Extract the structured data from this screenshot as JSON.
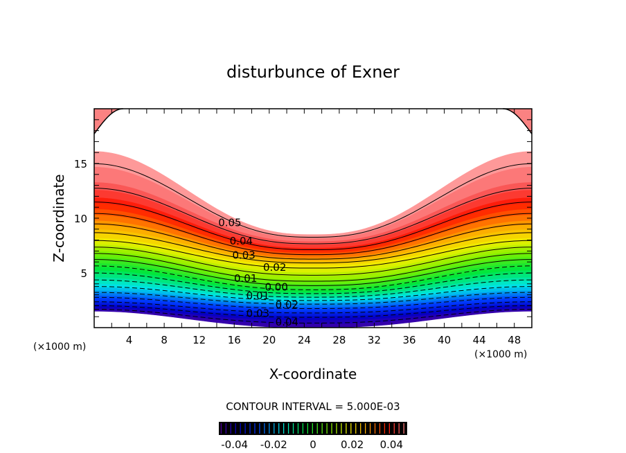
{
  "chart_data": {
    "type": "contour",
    "title": "disturbunce of Exner",
    "xlabel": "X-coordinate",
    "ylabel": "Z-coordinate",
    "x_unit_left": "(×1000 m)",
    "x_unit_right": "(×1000 m)",
    "xlim": [
      0,
      50
    ],
    "ylim": [
      0,
      20
    ],
    "xticks": [
      4,
      8,
      12,
      16,
      20,
      24,
      28,
      32,
      36,
      40,
      44,
      48
    ],
    "xtick_labels": [
      "4",
      "8",
      "12",
      "16",
      "20",
      "24",
      "28",
      "32",
      "36",
      "40",
      "44",
      "48"
    ],
    "yticks": [
      5,
      10,
      15
    ],
    "ytick_labels": [
      "5",
      "10",
      "15"
    ],
    "contour_interval_text": "CONTOUR INTERVAL = 5.000E-03",
    "contour_interval": 0.005,
    "level_range": [
      -0.045,
      0.05
    ],
    "level_heights": {
      "levels": [
        -0.045,
        -0.04,
        -0.03,
        -0.02,
        -0.01,
        0.0,
        0.01,
        0.02,
        0.03,
        0.04,
        0.045,
        0.05
      ],
      "z_at_edges": [
        1.5,
        1.8,
        2.5,
        3.4,
        4.6,
        5.9,
        7.0,
        8.2,
        9.8,
        11.9,
        13.3,
        16.1
      ],
      "z_at_center": [
        0.0,
        0.7,
        1.5,
        2.3,
        2.9,
        3.6,
        4.4,
        5.7,
        6.4,
        7.3,
        7.9,
        8.5
      ]
    },
    "top_corner_boundary": {
      "z_at_edge": 17.7,
      "x_reach": 3.3
    },
    "contour_labels": [
      {
        "text": "0.05",
        "x": 15.5,
        "z": 9.6
      },
      {
        "text": "0.04",
        "x": 16.8,
        "z": 7.9
      },
      {
        "text": "0.03",
        "x": 17.1,
        "z": 6.6
      },
      {
        "text": "0.02",
        "x": 17.3,
        "z": 5.5
      },
      {
        "text": "0.01",
        "x": 17.3,
        "z": 4.5
      },
      {
        "text": "0.00",
        "x": 17.5,
        "z": 3.7
      },
      {
        "text": "0.01",
        "x": 18.7,
        "z": 2.9
      },
      {
        "text": "0.02",
        "x": 18.7,
        "z": 2.1
      },
      {
        "text": "0.03",
        "x": 18.7,
        "z": 1.3
      },
      {
        "text": "0.04",
        "x": 18.7,
        "z": 0.5
      }
    ],
    "colorbar": {
      "range": [
        -0.048,
        0.048
      ],
      "ticks": [
        -0.04,
        -0.02,
        0,
        0.02,
        0.04
      ],
      "tick_labels": [
        "-0.04",
        "-0.02",
        "0",
        "0.02",
        "0.04"
      ]
    }
  }
}
